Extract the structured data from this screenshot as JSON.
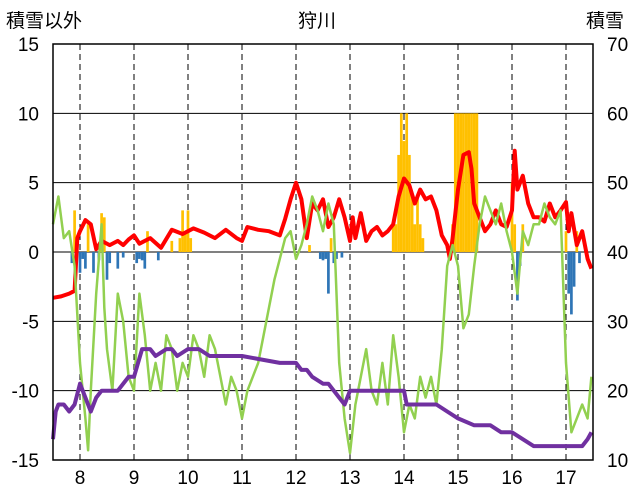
{
  "chart_data": {
    "type": "line",
    "title": "狩川",
    "ylabel_left": "積雪以外",
    "ylabel_right": "積雪",
    "ylim_left": [
      -15,
      15
    ],
    "ylim_right": [
      10,
      70
    ],
    "yticks_left": [
      "15",
      "10",
      "5",
      "0",
      "-5",
      "-10",
      "-15"
    ],
    "yticks_right": [
      "70",
      "60",
      "50",
      "40",
      "30",
      "20",
      "10"
    ],
    "xlim": [
      7.5,
      17.5
    ],
    "xticks": [
      "8",
      "9",
      "10",
      "11",
      "12",
      "13",
      "14",
      "15",
      "16",
      "17"
    ],
    "colors": {
      "temp_max": "#ff0000",
      "temp_min": "#92d050",
      "snow_depth": "#7030a0",
      "precip_pos": "#ffc000",
      "precip_neg": "#2e75b6",
      "grid": "#000000"
    },
    "series": [
      {
        "key": "temp_max",
        "axis": "left",
        "x": [
          7.5,
          7.65,
          7.8,
          7.9,
          7.95,
          8.0,
          8.1,
          8.2,
          8.3,
          8.4,
          8.55,
          8.7,
          8.8,
          8.9,
          9.0,
          9.1,
          9.3,
          9.5,
          9.7,
          9.9,
          10.0,
          10.1,
          10.3,
          10.5,
          10.7,
          10.9,
          11.0,
          11.1,
          11.3,
          11.5,
          11.7,
          11.8,
          11.9,
          12.0,
          12.1,
          12.2,
          12.3,
          12.4,
          12.5,
          12.6,
          12.7,
          12.8,
          12.9,
          13.0,
          13.05,
          13.1,
          13.2,
          13.3,
          13.4,
          13.5,
          13.6,
          13.7,
          13.8,
          13.9,
          14.0,
          14.1,
          14.2,
          14.3,
          14.4,
          14.5,
          14.6,
          14.7,
          14.8,
          14.85,
          14.9,
          15.0,
          15.1,
          15.2,
          15.25,
          15.3,
          15.4,
          15.5,
          15.6,
          15.7,
          15.8,
          15.9,
          16.0,
          16.05,
          16.1,
          16.2,
          16.3,
          16.4,
          16.5,
          16.6,
          16.7,
          16.8,
          16.9,
          17.0,
          17.05,
          17.1,
          17.2,
          17.3,
          17.4,
          17.47
        ],
        "values": [
          -3.3,
          -3.2,
          -3.0,
          -2.8,
          1.0,
          1.5,
          2.3,
          2.0,
          0.2,
          0.8,
          0.5,
          0.8,
          0.5,
          0.9,
          1.2,
          0.6,
          1.0,
          0.3,
          1.6,
          1.3,
          1.5,
          1.7,
          1.4,
          1.0,
          1.6,
          1.0,
          0.8,
          1.8,
          1.6,
          1.5,
          1.2,
          2.4,
          3.8,
          5.0,
          3.8,
          1.0,
          3.5,
          3.0,
          3.8,
          1.8,
          2.5,
          3.8,
          2.5,
          0.8,
          2.5,
          1.0,
          2.8,
          0.8,
          1.5,
          1.8,
          1.2,
          1.5,
          2.0,
          4.0,
          5.3,
          4.8,
          3.5,
          4.5,
          3.8,
          4.0,
          3.0,
          1.2,
          0.5,
          -0.5,
          1.0,
          4.5,
          7.0,
          7.2,
          6.0,
          3.5,
          2.5,
          1.5,
          2.0,
          3.0,
          2.0,
          1.8,
          3.0,
          7.3,
          4.5,
          5.5,
          3.5,
          2.5,
          2.5,
          2.2,
          3.5,
          2.5,
          3.0,
          3.6,
          1.5,
          2.8,
          0.5,
          1.5,
          -0.5,
          -1.2
        ]
      },
      {
        "key": "temp_min",
        "axis": "left",
        "x": [
          7.5,
          7.6,
          7.7,
          7.8,
          7.9,
          8.0,
          8.1,
          8.15,
          8.2,
          8.3,
          8.4,
          8.45,
          8.5,
          8.6,
          8.7,
          8.8,
          8.9,
          9.0,
          9.1,
          9.2,
          9.3,
          9.4,
          9.5,
          9.6,
          9.7,
          9.8,
          9.9,
          10.0,
          10.1,
          10.2,
          10.3,
          10.4,
          10.5,
          10.6,
          10.7,
          10.8,
          10.9,
          11.0,
          11.1,
          11.2,
          11.3,
          11.4,
          11.5,
          11.6,
          11.7,
          11.8,
          11.9,
          12.0,
          12.1,
          12.2,
          12.3,
          12.4,
          12.5,
          12.6,
          12.7,
          12.8,
          12.9,
          13.0,
          13.1,
          13.2,
          13.3,
          13.4,
          13.5,
          13.6,
          13.7,
          13.8,
          13.9,
          14.0,
          14.1,
          14.2,
          14.3,
          14.4,
          14.5,
          14.6,
          14.7,
          14.8,
          14.9,
          15.0,
          15.1,
          15.2,
          15.3,
          15.4,
          15.5,
          15.6,
          15.7,
          15.8,
          15.9,
          16.0,
          16.1,
          16.2,
          16.3,
          16.4,
          16.5,
          16.6,
          16.7,
          16.8,
          16.9,
          17.0,
          17.1,
          17.2,
          17.3,
          17.4,
          17.47
        ],
        "values": [
          2.0,
          4.0,
          1.0,
          1.5,
          -1.0,
          -8.0,
          -12.0,
          -14.3,
          -10.0,
          -3.0,
          2.0,
          -4.0,
          -7.0,
          -10.0,
          -3.0,
          -5.0,
          -9.0,
          -10.0,
          -3.0,
          -6.0,
          -10.0,
          -8.0,
          -10.0,
          -6.0,
          -7.0,
          -10.0,
          -8.0,
          -9.0,
          -6.0,
          -7.0,
          -9.0,
          -6.0,
          -7.0,
          -9.0,
          -11.0,
          -9.0,
          -10.0,
          -12.0,
          -10.0,
          -9.0,
          -8.0,
          -6.0,
          -4.0,
          -2.0,
          -0.5,
          1.0,
          1.5,
          -0.5,
          0.5,
          2.0,
          4.0,
          3.0,
          1.5,
          3.5,
          2.0,
          -8.0,
          -12.0,
          -14.5,
          -11.0,
          -9.0,
          -7.0,
          -10.0,
          -11.0,
          -8.0,
          -11.0,
          -6.0,
          -9.0,
          -13.0,
          -11.0,
          -12.0,
          -9.0,
          -10.5,
          -9.0,
          -11.0,
          -7.0,
          -1.0,
          0.5,
          -1.0,
          -5.5,
          -4.5,
          -1.0,
          2.0,
          4.0,
          3.0,
          2.0,
          3.5,
          1.5,
          0.0,
          -3.0,
          1.5,
          0.5,
          2.0,
          2.0,
          3.5,
          2.5,
          2.0,
          3.0,
          -8.0,
          -13.0,
          -12.0,
          -11.0,
          -12.0,
          -9.0
        ]
      },
      {
        "key": "snow_depth",
        "axis": "right",
        "x": [
          7.5,
          7.55,
          7.6,
          7.7,
          7.8,
          7.9,
          8.0,
          8.1,
          8.2,
          8.3,
          8.4,
          8.5,
          8.7,
          8.9,
          9.0,
          9.15,
          9.3,
          9.4,
          9.6,
          9.7,
          9.8,
          10.0,
          10.2,
          10.4,
          10.7,
          10.9,
          11.0,
          11.7,
          12.0,
          12.1,
          12.2,
          12.3,
          12.5,
          12.6,
          12.7,
          12.8,
          12.9,
          13.0,
          13.4,
          13.7,
          14.0,
          14.05,
          14.1,
          14.3,
          14.6,
          14.8,
          15.0,
          15.3,
          15.6,
          15.8,
          16.0,
          16.2,
          16.4,
          16.6,
          16.8,
          17.0,
          17.1,
          17.2,
          17.3,
          17.4,
          17.47
        ],
        "values": [
          13,
          17,
          18,
          18,
          17,
          18,
          21,
          19,
          17,
          19,
          20,
          20,
          20,
          22,
          22,
          26,
          26,
          25,
          26,
          26,
          25,
          26,
          26,
          25,
          25,
          25,
          25,
          24,
          24,
          23,
          23,
          22,
          21,
          21,
          20,
          19,
          18,
          20,
          20,
          20,
          20,
          18,
          18,
          18,
          18,
          17,
          16,
          15,
          15,
          14,
          14,
          13,
          12,
          12,
          12,
          12,
          12,
          12,
          12,
          13,
          14
        ]
      }
    ],
    "precip": {
      "axis": "left",
      "x": [
        7.85,
        7.9,
        8.0,
        8.05,
        8.1,
        8.15,
        8.25,
        8.35,
        8.4,
        8.45,
        8.5,
        8.55,
        8.7,
        8.8,
        9.05,
        9.1,
        9.15,
        9.2,
        9.25,
        9.45,
        9.7,
        9.85,
        9.9,
        9.95,
        10.0,
        10.05,
        12.25,
        12.45,
        12.5,
        12.55,
        12.6,
        12.65,
        12.7,
        12.75,
        12.85,
        13.8,
        13.85,
        13.9,
        13.95,
        14.0,
        14.05,
        14.1,
        14.15,
        14.2,
        14.25,
        14.3,
        14.35,
        14.9,
        14.95,
        15.0,
        15.05,
        15.1,
        15.15,
        15.2,
        15.25,
        15.3,
        15.35,
        16.0,
        16.05,
        16.1,
        16.15,
        16.2,
        17.0,
        17.05,
        17.1,
        17.15,
        17.2,
        17.25
      ],
      "values": [
        -0.8,
        3.0,
        -1.5,
        -0.5,
        -1.2,
        2.0,
        -1.5,
        -0.6,
        2.8,
        2.5,
        -2.0,
        -0.8,
        -1.2,
        -0.4,
        -0.8,
        -0.5,
        -0.6,
        -1.2,
        1.5,
        -0.6,
        0.8,
        1.0,
        3.0,
        1.5,
        3.0,
        1.0,
        0.5,
        -0.5,
        -0.6,
        -0.5,
        -3.0,
        1.0,
        -0.8,
        -0.5,
        -0.4,
        2.0,
        2.0,
        7.0,
        10.0,
        8.0,
        10.0,
        7.0,
        4.0,
        2.0,
        4.0,
        2.0,
        1.0,
        2.0,
        10.0,
        10.0,
        10.0,
        10.0,
        10.0,
        10.0,
        10.0,
        10.0,
        10.0,
        5.0,
        2.0,
        -3.5,
        -1.0,
        2.0,
        1.5,
        -3.0,
        -4.5,
        -2.5,
        1.5,
        -0.8
      ]
    }
  }
}
